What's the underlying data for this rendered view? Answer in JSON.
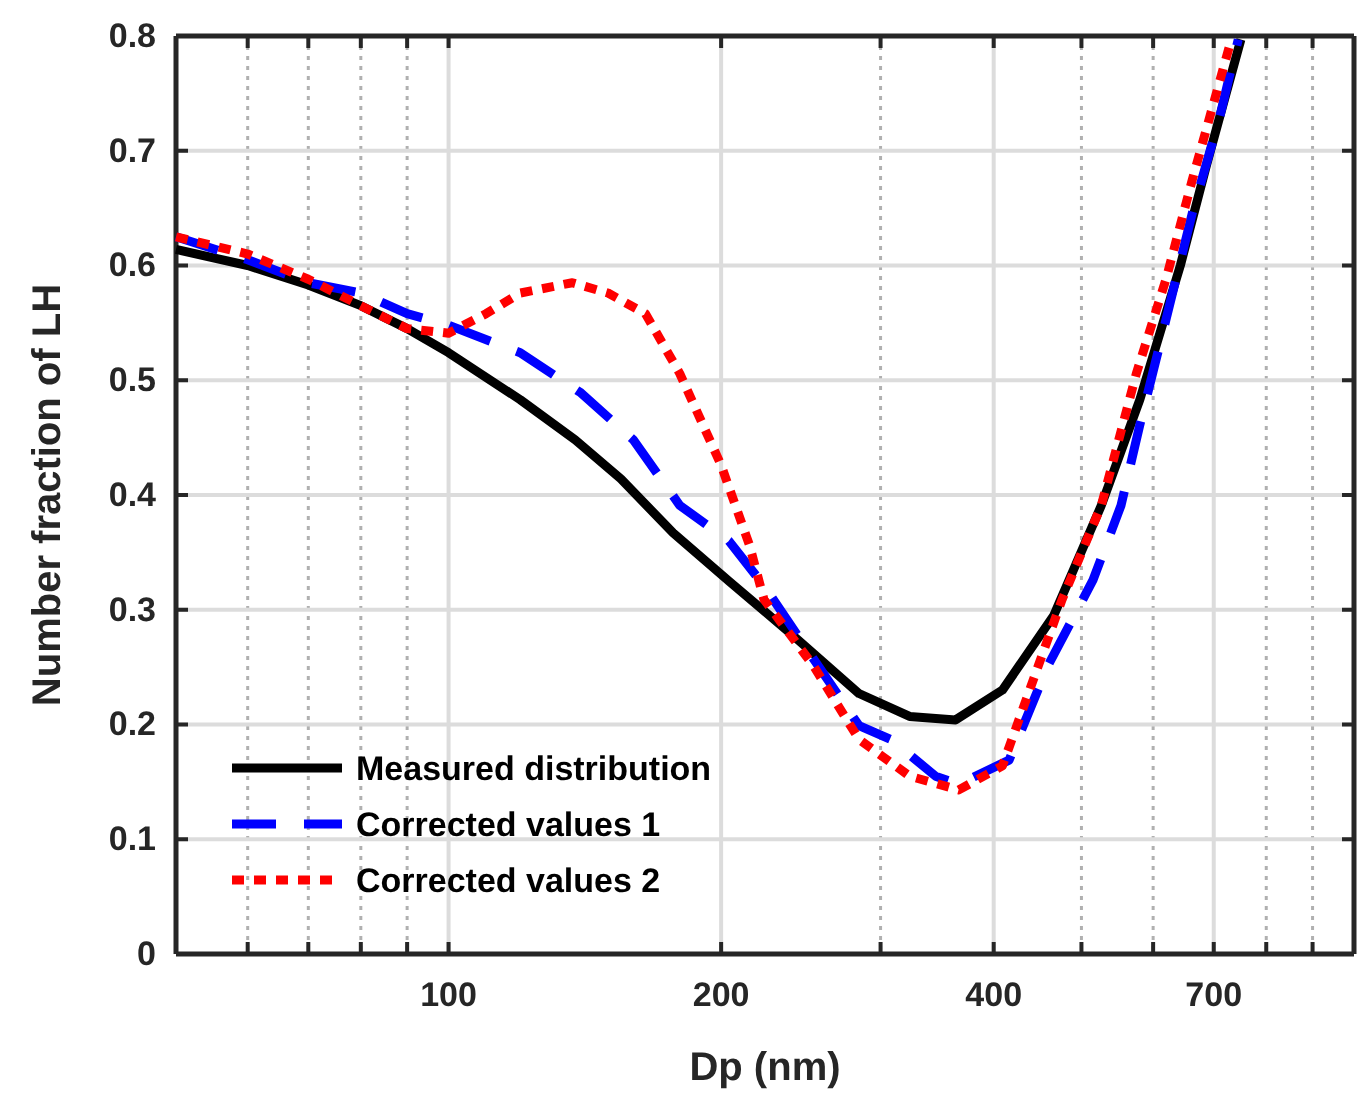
{
  "chart_data": {
    "type": "line",
    "xlabel": "Dp (nm)",
    "ylabel": "Number fraction of LH",
    "log": "x",
    "grid": true,
    "legend": "bottom left",
    "xlim": [
      50,
      1000
    ],
    "ylim": [
      0,
      0.8
    ],
    "xticks": [
      {
        "value": 60,
        "label": null
      },
      {
        "value": 70,
        "label": null
      },
      {
        "value": 80,
        "label": null
      },
      {
        "value": 90,
        "label": null
      },
      100,
      200,
      {
        "value": 300,
        "label": null
      },
      400,
      {
        "value": 500,
        "label": null
      },
      {
        "value": 600,
        "label": null
      },
      700,
      {
        "value": 800,
        "label": null
      },
      {
        "value": 900,
        "label": null
      }
    ],
    "yticks": [
      0,
      0.1,
      0.2,
      0.3,
      0.4,
      0.5,
      0.6,
      0.7,
      0.8
    ],
    "series": [
      {
        "name": "Measured distribution",
        "color": "#000000",
        "line_style": "solid",
        "x": [
          50,
          60,
          70,
          80,
          90,
          100,
          120,
          138,
          155,
          177,
          204,
          243,
          284,
          323,
          363,
          409,
          466,
          526,
          580,
          643,
          687,
          750
        ],
        "values": [
          0.614,
          0.6,
          0.583,
          0.565,
          0.545,
          0.524,
          0.483,
          0.448,
          0.414,
          0.367,
          0.325,
          0.274,
          0.227,
          0.207,
          0.204,
          0.23,
          0.295,
          0.391,
          0.483,
          0.6,
          0.687,
          0.797
        ]
      },
      {
        "name": "Corrected values 1",
        "color": "#0000ff",
        "line_style": "dashed",
        "x": [
          50,
          60,
          70,
          80,
          90,
          100,
          120,
          140,
          160,
          180,
          204,
          223,
          253,
          284,
          308,
          345,
          366,
          416,
          459,
          515,
          553,
          580,
          620,
          663,
          710,
          745
        ],
        "values": [
          0.625,
          0.605,
          0.585,
          0.576,
          0.558,
          0.548,
          0.524,
          0.489,
          0.448,
          0.391,
          0.36,
          0.321,
          0.257,
          0.199,
          0.187,
          0.155,
          0.148,
          0.169,
          0.251,
          0.326,
          0.391,
          0.461,
          0.553,
          0.646,
          0.728,
          0.797
        ]
      },
      {
        "name": "Corrected values 2",
        "color": "#ff0000",
        "line_style": "dotted",
        "x": [
          50,
          60,
          70,
          80,
          90,
          100,
          110,
          120,
          137,
          150,
          165,
          180,
          200,
          215,
          223,
          253,
          284,
          323,
          366,
          409,
          476,
          526,
          575,
          620,
          663,
          732
        ],
        "values": [
          0.625,
          0.61,
          0.588,
          0.565,
          0.545,
          0.541,
          0.558,
          0.576,
          0.585,
          0.576,
          0.558,
          0.506,
          0.426,
          0.356,
          0.309,
          0.251,
          0.187,
          0.155,
          0.143,
          0.164,
          0.309,
          0.391,
          0.506,
          0.588,
          0.675,
          0.797
        ]
      }
    ]
  }
}
